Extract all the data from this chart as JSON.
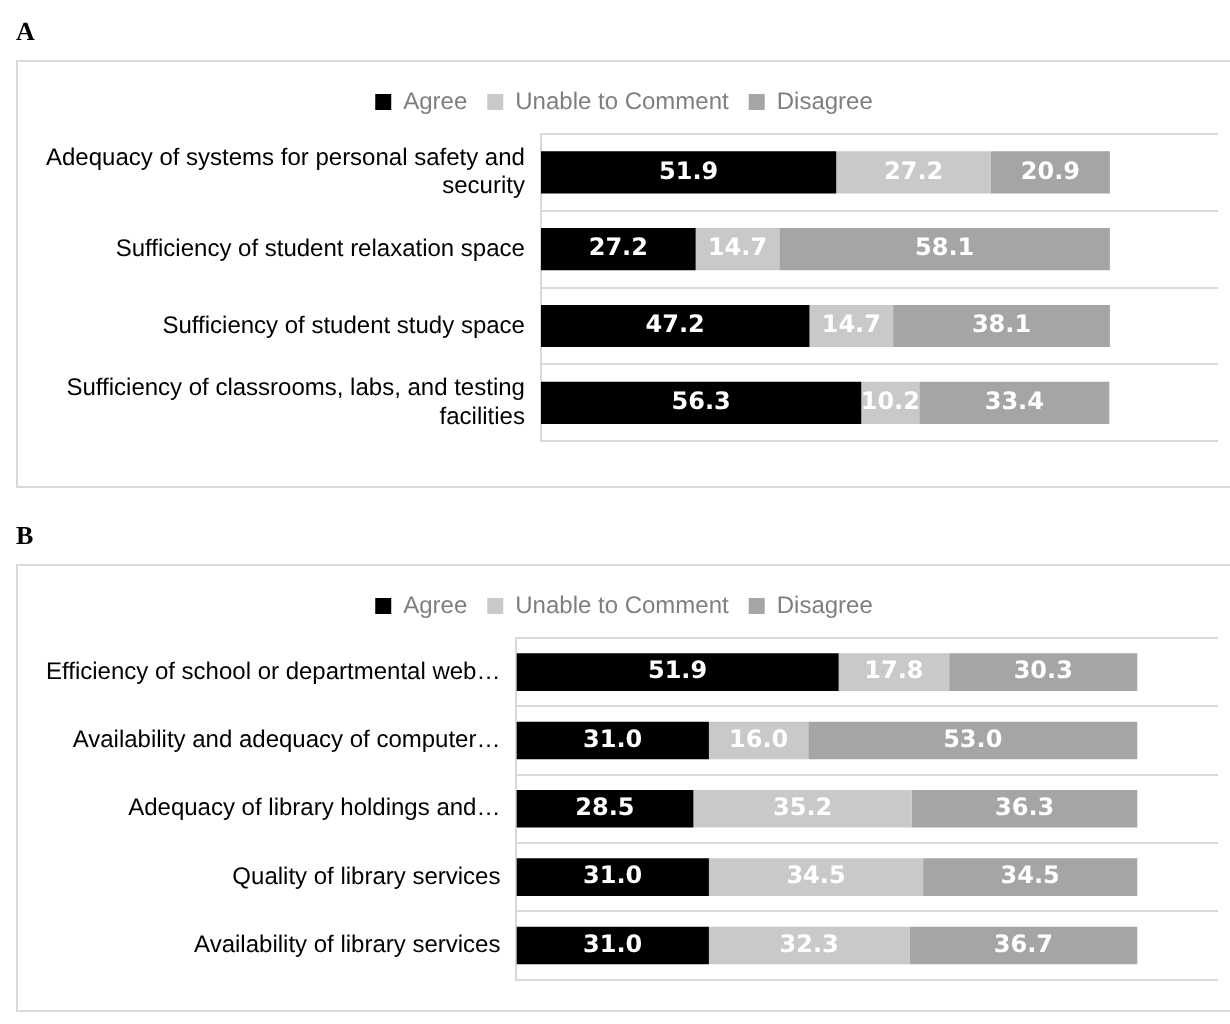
{
  "chart_data": [
    {
      "type": "bar",
      "title": "A",
      "orientation": "horizontal",
      "stacked": true,
      "legend": "top",
      "grid": "y",
      "tick_labels": "y",
      "xlim": [
        0,
        119
      ],
      "categories": [
        "Adequacy of systems for personal safety and security",
        "Sufficiency of student relaxation space",
        "Sufficiency of student study space",
        "Sufficiency of classrooms, labs, and testing facilities"
      ],
      "series": [
        {
          "name": "Agree",
          "color": "#000000",
          "values": [
            51.9,
            27.2,
            47.2,
            56.3
          ],
          "value_labels": [
            "51.9",
            "27.2",
            "47.2",
            "56.3"
          ]
        },
        {
          "name": "Unable to Comment",
          "color": "#c9c9c9",
          "values": [
            27.2,
            14.7,
            14.7,
            10.2
          ],
          "value_labels": [
            "27.2",
            "14.7",
            "14.7",
            "10.2"
          ]
        },
        {
          "name": "Disagree",
          "color": "#a5a5a5",
          "values": [
            20.9,
            58.1,
            38.1,
            33.4
          ],
          "value_labels": [
            "20.9",
            "58.1",
            "38.1",
            "33.4"
          ]
        }
      ]
    },
    {
      "type": "bar",
      "title": "B",
      "orientation": "horizontal",
      "stacked": true,
      "legend": "top",
      "grid": "y",
      "tick_labels": "y",
      "xlim": [
        0,
        113
      ],
      "categories": [
        "Efficiency of school or departmental web…",
        "Availability and adequacy of computer…",
        "Adequacy of library holdings and…",
        "Quality of library services",
        "Availability of library services"
      ],
      "series": [
        {
          "name": "Agree",
          "color": "#000000",
          "values": [
            51.9,
            31.0,
            28.5,
            31.0,
            31.0
          ],
          "value_labels": [
            "51.9",
            "31.0",
            "28.5",
            "31.0",
            "31.0"
          ]
        },
        {
          "name": "Unable to Comment",
          "color": "#c9c9c9",
          "values": [
            17.8,
            16.0,
            35.2,
            34.5,
            32.3
          ],
          "value_labels": [
            "17.8",
            "16.0",
            "35.2",
            "34.5",
            "32.3"
          ]
        },
        {
          "name": "Disagree",
          "color": "#a5a5a5",
          "values": [
            30.3,
            53.0,
            36.3,
            34.5,
            36.7
          ],
          "value_labels": [
            "30.3",
            "53.0",
            "36.3",
            "34.5",
            "36.7"
          ]
        }
      ]
    }
  ]
}
